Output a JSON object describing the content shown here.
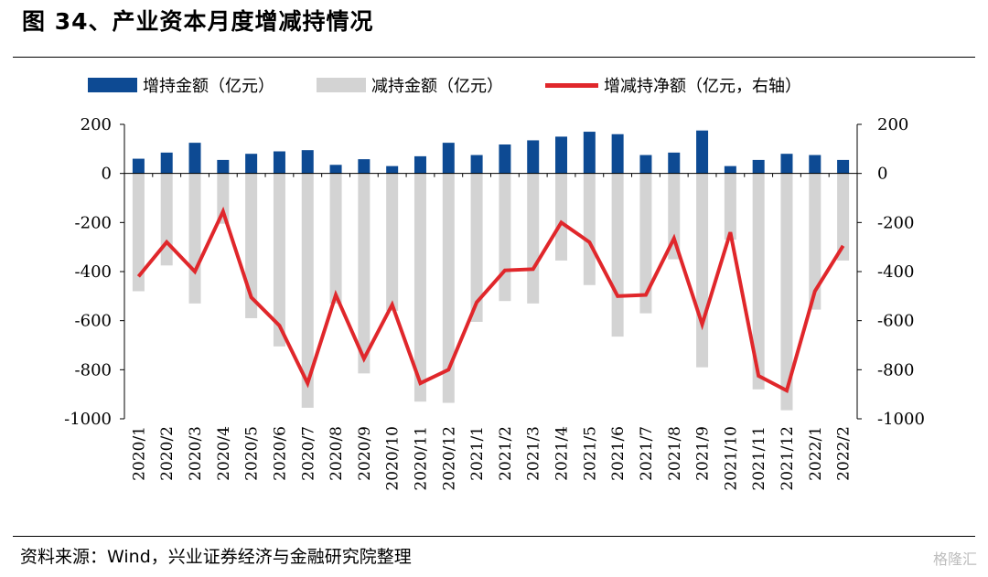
{
  "title": "图 34、产业资本月度增减持情况",
  "source": "资料来源：Wind，兴业证券经济与金融研究院整理",
  "watermark": "格隆汇",
  "colors": {
    "increase": "#0d4a93",
    "decrease": "#d3d3d3",
    "net": "#e0272b"
  },
  "chart_data": {
    "type": "bar",
    "title": "",
    "legend": "top",
    "grid": false,
    "ylim_left": [
      -1000,
      200
    ],
    "ylim_right": [
      -1000,
      200
    ],
    "yticks": [
      200,
      0,
      -200,
      -400,
      -600,
      -800,
      -1000
    ],
    "categories": [
      "2020/1",
      "2020/2",
      "2020/3",
      "2020/4",
      "2020/5",
      "2020/6",
      "2020/7",
      "2020/8",
      "2020/9",
      "2020/10",
      "2020/11",
      "2020/12",
      "2021/1",
      "2021/2",
      "2021/3",
      "2021/4",
      "2021/5",
      "2021/6",
      "2021/7",
      "2021/8",
      "2021/9",
      "2021/10",
      "2021/11",
      "2021/12",
      "2022/1",
      "2022/2"
    ],
    "series": [
      {
        "name": "增持金额（亿元）",
        "type": "bar",
        "axis": "left",
        "values": [
          60,
          85,
          125,
          55,
          80,
          90,
          95,
          35,
          58,
          30,
          70,
          125,
          75,
          118,
          135,
          150,
          170,
          160,
          75,
          85,
          175,
          30,
          55,
          80,
          75,
          55
        ]
      },
      {
        "name": "减持金额（亿元）",
        "type": "bar",
        "axis": "left",
        "values": [
          -480,
          -375,
          -530,
          -205,
          -590,
          -705,
          -955,
          -530,
          -815,
          -560,
          -930,
          -935,
          -605,
          -520,
          -530,
          -355,
          -455,
          -665,
          -570,
          -350,
          -790,
          -270,
          -880,
          -965,
          -555,
          -355
        ]
      },
      {
        "name": "增减持净额（亿元，右轴）",
        "type": "line",
        "axis": "right",
        "values": [
          -420,
          -280,
          -400,
          -155,
          -505,
          -620,
          -855,
          -495,
          -755,
          -535,
          -855,
          -800,
          -525,
          -395,
          -390,
          -200,
          -280,
          -500,
          -495,
          -265,
          -615,
          -240,
          -825,
          -885,
          -480,
          -295
        ]
      }
    ]
  }
}
